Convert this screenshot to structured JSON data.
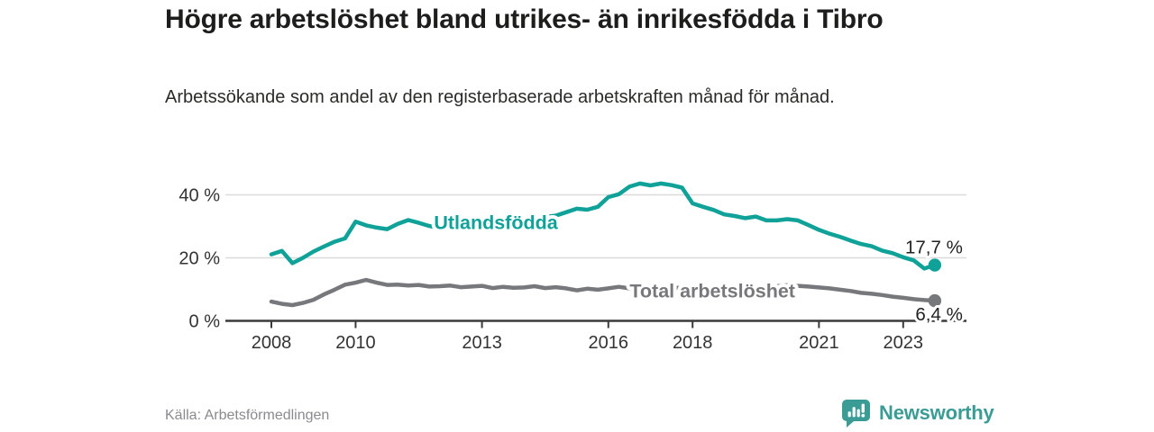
{
  "header": {
    "title": "Högre arbetslöshet bland utrikes- än inrikesfödda i Tibro",
    "subtitle": "Arbetssökande som andel av den registerbaserade arbetskraften månad för månad."
  },
  "footer": {
    "source": "Källa: Arbetsförmedlingen",
    "brand": "Newsworthy",
    "brand_color": "#3b9c95",
    "logo_icon": "bar-chart-speech-bubble-icon"
  },
  "chart_data": {
    "type": "line",
    "title": "Högre arbetslöshet bland utrikes- än inrikesfödda i Tibro",
    "subtitle": "Arbetssökande som andel av den registerbaserade arbetskraften månad för månad.",
    "y_unit": "%",
    "grid": "horizontal",
    "legend_position": "inline-labels",
    "xlim": [
      2006.9,
      2024.5
    ],
    "ylim": [
      0,
      47
    ],
    "x_ticks": [
      2008,
      2010,
      2013,
      2016,
      2018,
      2021,
      2023
    ],
    "y_ticks": [
      {
        "value": 0,
        "label": "0 %"
      },
      {
        "value": 20,
        "label": "20 %"
      },
      {
        "value": 40,
        "label": "40 %"
      }
    ],
    "axis_color": "#3a3a3a",
    "grid_color": "#dadadb",
    "tick_label_color": "#333333",
    "value_label_color": "#222222",
    "x": [
      2008,
      2008.25,
      2008.5,
      2008.75,
      2009,
      2009.25,
      2009.5,
      2009.75,
      2010,
      2010.25,
      2010.5,
      2010.75,
      2011,
      2011.25,
      2011.5,
      2011.75,
      2012,
      2012.25,
      2012.5,
      2012.75,
      2013,
      2013.25,
      2013.5,
      2013.75,
      2014,
      2014.25,
      2014.5,
      2014.75,
      2015,
      2015.25,
      2015.5,
      2015.75,
      2016,
      2016.25,
      2016.5,
      2016.75,
      2017,
      2017.25,
      2017.5,
      2017.75,
      2018,
      2018.25,
      2018.5,
      2018.75,
      2019,
      2019.25,
      2019.5,
      2019.75,
      2020,
      2020.25,
      2020.5,
      2020.75,
      2021,
      2021.25,
      2021.5,
      2021.75,
      2022,
      2022.25,
      2022.5,
      2022.75,
      2023,
      2023.25,
      2023.5,
      2023.75
    ],
    "series": [
      {
        "name": "Utlandsfödda",
        "color": "#10a299",
        "end_label": "17,7 %",
        "end_value": 17.7,
        "end_label_side": "above",
        "label_pos": {
          "x": 2013.33,
          "y": 31.3
        },
        "values": [
          21.1,
          22.2,
          18.3,
          20.0,
          22.0,
          23.6,
          25.1,
          26.2,
          31.5,
          30.3,
          29.6,
          29.1,
          30.8,
          32.0,
          31.1,
          30.1,
          29.4,
          29.8,
          30.2,
          30.0,
          30.4,
          30.9,
          31.4,
          31.9,
          32.2,
          32.6,
          33.0,
          33.4,
          34.5,
          35.6,
          35.3,
          36.2,
          39.3,
          40.2,
          42.6,
          43.6,
          43.0,
          43.6,
          43.1,
          42.3,
          37.3,
          36.2,
          35.2,
          33.8,
          33.3,
          32.6,
          33.1,
          31.9,
          31.9,
          32.3,
          31.9,
          30.4,
          28.9,
          27.7,
          26.7,
          25.5,
          24.4,
          23.7,
          22.3,
          21.5,
          20.2,
          19.2,
          16.6,
          17.7
        ]
      },
      {
        "name": "Total arbetslöshet",
        "color": "#77787c",
        "end_label": "6,4 %",
        "end_value": 6.4,
        "end_label_side": "below",
        "label_pos": {
          "x": 2018.47,
          "y": 9.6
        },
        "values": [
          6.1,
          5.4,
          5.0,
          5.7,
          6.7,
          8.4,
          9.9,
          11.5,
          12.1,
          13.0,
          12.1,
          11.4,
          11.5,
          11.2,
          11.4,
          10.9,
          11.0,
          11.2,
          10.7,
          10.9,
          11.1,
          10.4,
          10.8,
          10.5,
          10.6,
          11.0,
          10.4,
          10.7,
          10.3,
          9.7,
          10.2,
          9.9,
          10.3,
          10.8,
          10.3,
          10.5,
          10.6,
          10.8,
          10.6,
          10.4,
          10.5,
          10.6,
          10.4,
          10.5,
          10.6,
          10.7,
          10.8,
          10.9,
          11.0,
          11.3,
          11.1,
          10.9,
          10.6,
          10.3,
          9.9,
          9.5,
          8.9,
          8.6,
          8.2,
          7.7,
          7.3,
          6.9,
          6.6,
          6.4
        ]
      }
    ]
  }
}
